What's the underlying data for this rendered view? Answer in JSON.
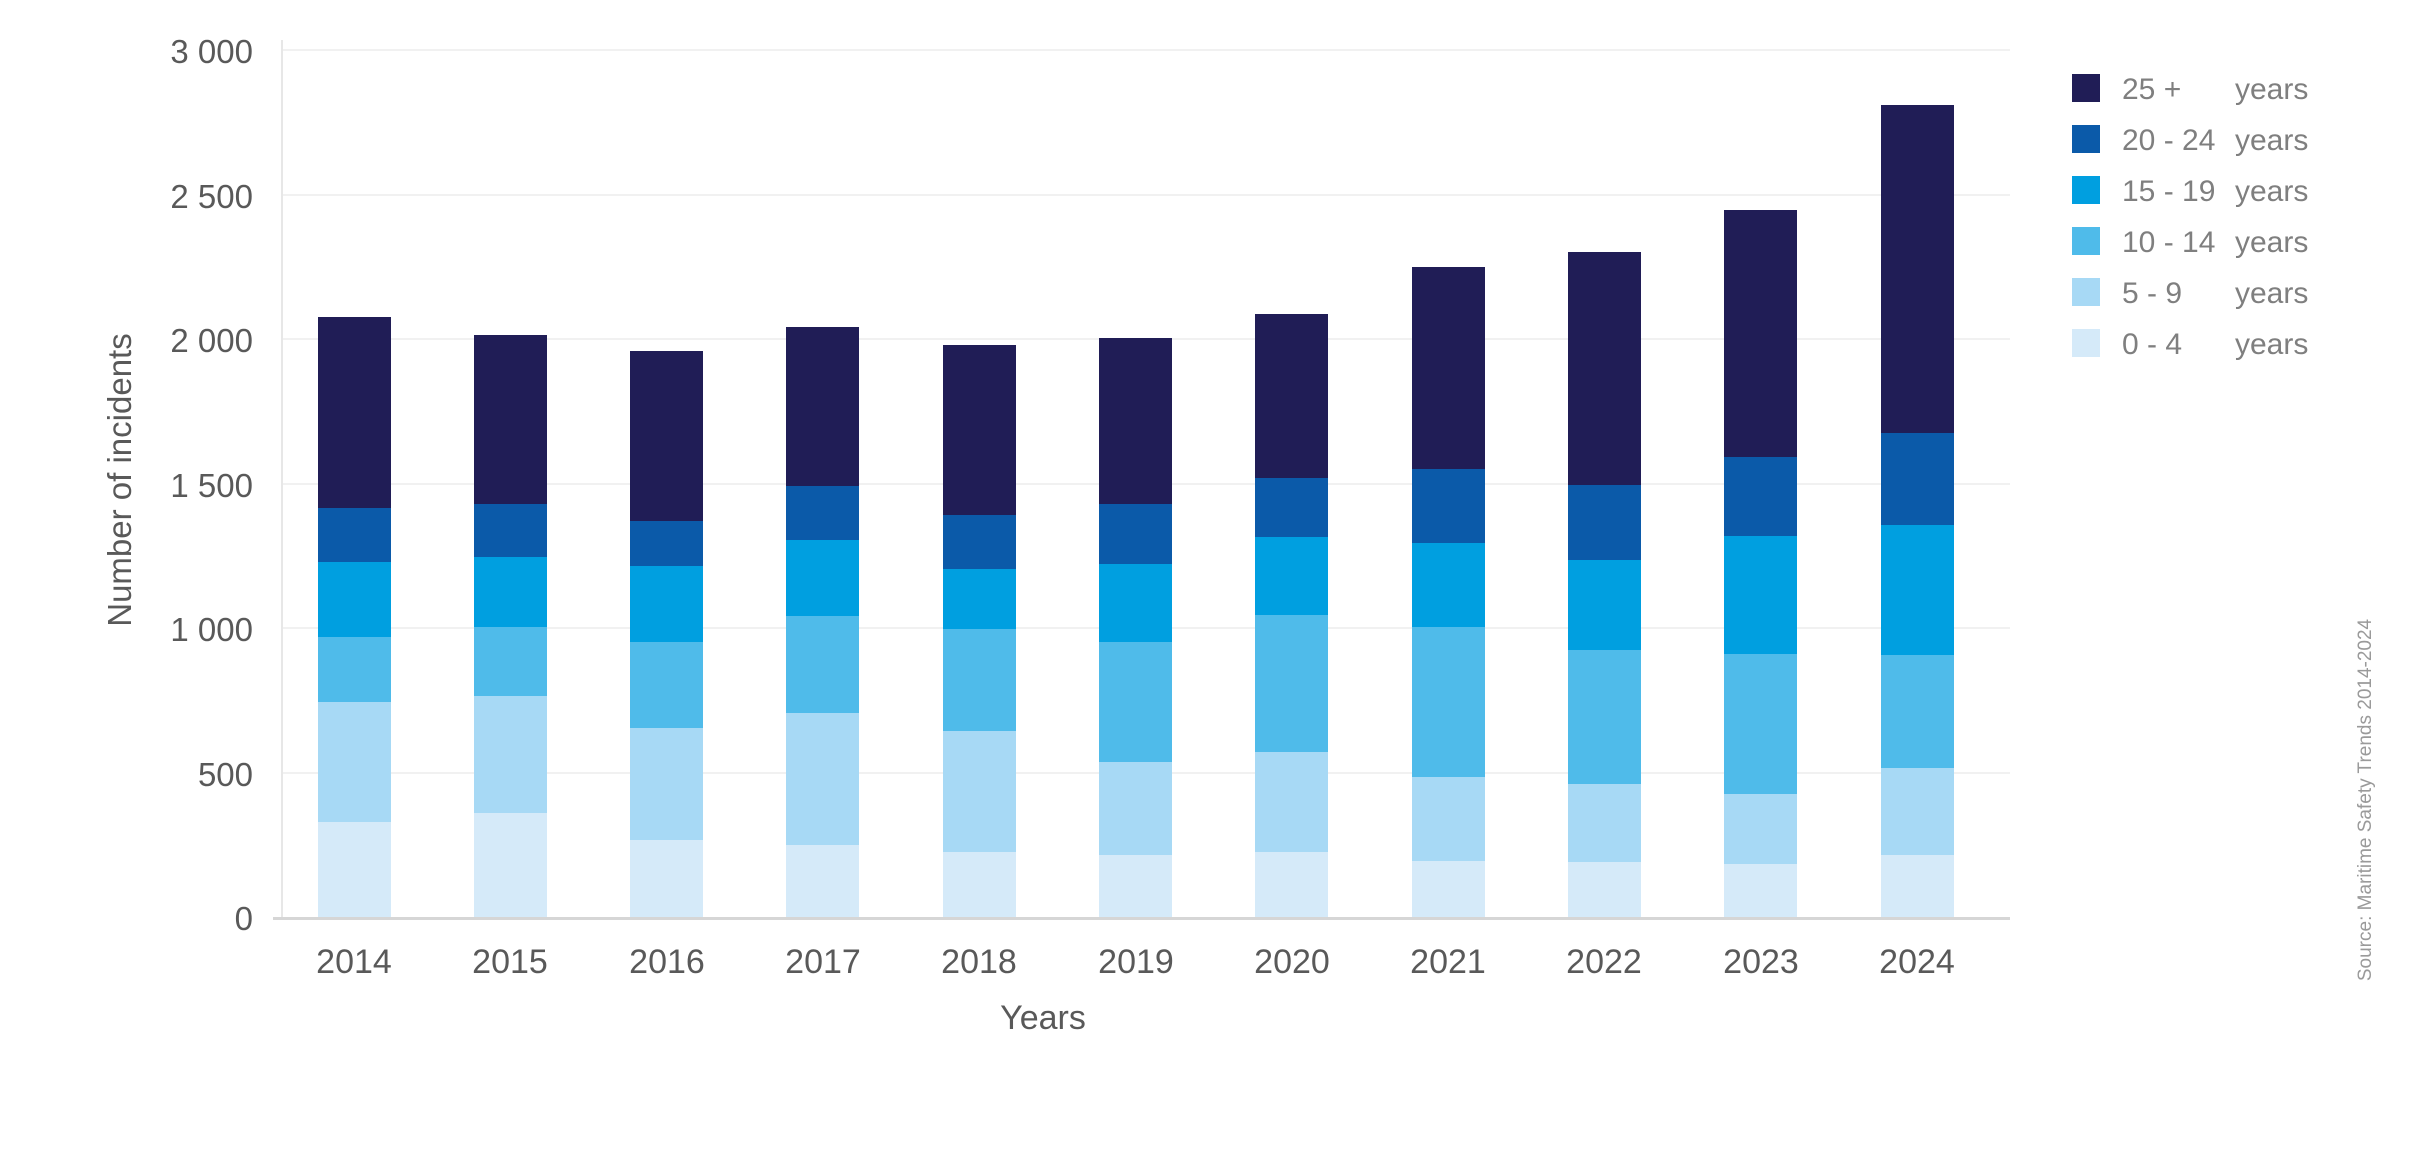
{
  "source_note": "Source: Maritime Safety Trends 2014-2024",
  "colors": {
    "axis_text": "#595959",
    "legend_text": "#7f7f7f",
    "gridline": "#f1f1f1",
    "axis_line": "#d6d6d6"
  },
  "chart_data": {
    "type": "bar",
    "stacked": true,
    "xlabel": "Years",
    "ylabel": "Number of incidents",
    "categories": [
      "2014",
      "2015",
      "2016",
      "2017",
      "2018",
      "2019",
      "2020",
      "2021",
      "2022",
      "2023",
      "2024"
    ],
    "ylim": [
      0,
      3000
    ],
    "y_ticks": [
      {
        "value": 0,
        "label": "0"
      },
      {
        "value": 500,
        "label": "500"
      },
      {
        "value": 1000,
        "label": "1 000"
      },
      {
        "value": 1500,
        "label": "1 500"
      },
      {
        "value": 2000,
        "label": "2 000"
      },
      {
        "value": 2500,
        "label": "2 500"
      },
      {
        "value": 3000,
        "label": "3 000"
      }
    ],
    "grid": "horizontal-faint",
    "legend_position": "top-right",
    "legend_unit": "years",
    "series": [
      {
        "name": "25 + years",
        "range_label": "25 +",
        "color": "#201d56",
        "values": [
          660,
          585,
          590,
          550,
          590,
          575,
          565,
          700,
          805,
          855,
          1135
        ]
      },
      {
        "name": "20 - 24 years",
        "range_label": "20 - 24",
        "color": "#0b5aa9",
        "values": [
          185,
          185,
          155,
          185,
          185,
          210,
          205,
          255,
          260,
          270,
          320
        ]
      },
      {
        "name": "15 - 19 years",
        "range_label": "15 - 19",
        "color": "#009fe0",
        "values": [
          260,
          240,
          265,
          265,
          210,
          270,
          270,
          290,
          310,
          410,
          450
        ]
      },
      {
        "name": "10 - 14 years",
        "range_label": "10 - 14",
        "color": "#4fbbea",
        "values": [
          225,
          240,
          295,
          335,
          350,
          415,
          475,
          520,
          465,
          485,
          390
        ]
      },
      {
        "name": "5 - 9 years",
        "range_label": "5 - 9",
        "color": "#a7d9f5",
        "values": [
          415,
          405,
          390,
          455,
          420,
          320,
          345,
          290,
          270,
          240,
          300
        ]
      },
      {
        "name": "0 - 4 years",
        "range_label": "0 - 4",
        "color": "#d5eaf9",
        "values": [
          330,
          360,
          265,
          250,
          225,
          215,
          225,
          195,
          190,
          185,
          215
        ]
      }
    ],
    "totals": [
      2075,
      2015,
      1960,
      2040,
      1980,
      2005,
      2085,
      2250,
      2300,
      2445,
      2810
    ]
  }
}
